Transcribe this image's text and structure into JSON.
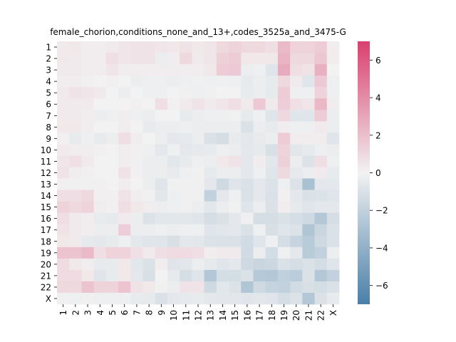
{
  "chart_data": {
    "type": "heatmap",
    "title": "female_chorion,conditions_none_and_13+,codes_3525a_and_3475-G",
    "row_labels": [
      "1",
      "2",
      "3",
      "4",
      "5",
      "6",
      "7",
      "8",
      "9",
      "10",
      "11",
      "12",
      "13",
      "14",
      "15",
      "16",
      "17",
      "18",
      "19",
      "20",
      "21",
      "22",
      "X"
    ],
    "col_labels": [
      "1",
      "2",
      "3",
      "4",
      "5",
      "6",
      "7",
      "8",
      "9",
      "10",
      "11",
      "12",
      "13",
      "14",
      "15",
      "16",
      "17",
      "18",
      "19",
      "20",
      "21",
      "22",
      "X"
    ],
    "colorbar": {
      "min": -7,
      "max": 7,
      "ticks": [
        -6,
        -4,
        -2,
        0,
        2,
        4,
        6
      ]
    },
    "colormap": {
      "low": "#4a7fa8",
      "mid": "#f2f2f2",
      "high": "#d9406e"
    },
    "values": [
      [
        0.3,
        0.4,
        0.2,
        0.2,
        0.3,
        0.5,
        0.6,
        0.6,
        0.5,
        0.4,
        0.6,
        0.4,
        0.5,
        1.0,
        1.2,
        1.0,
        1.0,
        0.8,
        2.2,
        1.2,
        1.2,
        1.5,
        0.2
      ],
      [
        0.4,
        0.3,
        0.2,
        0.2,
        0.8,
        0.5,
        0.6,
        0.6,
        -0.3,
        0.2,
        1.0,
        0.3,
        0.5,
        1.3,
        1.5,
        0.4,
        0.4,
        0.4,
        2.4,
        1.0,
        1.0,
        1.7,
        0.2
      ],
      [
        0.3,
        0.3,
        0.2,
        0.2,
        0.5,
        0.2,
        0.2,
        0.2,
        0.2,
        0.2,
        0.2,
        0.2,
        0.4,
        1.5,
        1.6,
        -0.3,
        -0.2,
        -0.8,
        2.8,
        0.8,
        0.6,
        2.6,
        0.0
      ],
      [
        0.2,
        0.2,
        0.1,
        0.0,
        0.1,
        0.0,
        -0.3,
        -0.2,
        -0.2,
        -0.3,
        -0.2,
        -0.1,
        -0.2,
        -0.1,
        -0.2,
        -0.5,
        -0.3,
        -0.4,
        1.0,
        0.3,
        -0.8,
        1.6,
        -0.2
      ],
      [
        0.3,
        0.6,
        0.5,
        0.3,
        0.0,
        -0.3,
        0.0,
        -0.2,
        -0.2,
        0.0,
        -0.1,
        -0.2,
        -0.1,
        0.0,
        0.0,
        -0.4,
        -0.3,
        -0.5,
        1.5,
        -0.2,
        -0.2,
        1.2,
        -0.2
      ],
      [
        0.3,
        0.3,
        0.3,
        0.0,
        0.0,
        0.0,
        0.1,
        0.0,
        0.8,
        0.1,
        0.3,
        0.6,
        0.3,
        0.5,
        0.8,
        0.3,
        1.6,
        0.3,
        1.4,
        0.7,
        0.5,
        2.3,
        0.2
      ],
      [
        0.3,
        0.3,
        0.2,
        -0.3,
        -0.2,
        0.2,
        -0.2,
        -0.3,
        0.0,
        0.0,
        -0.4,
        -0.3,
        -0.2,
        -0.2,
        -0.1,
        -0.5,
        -0.2,
        -0.8,
        1.0,
        -0.8,
        -0.8,
        1.5,
        -0.3
      ],
      [
        0.4,
        0.4,
        0.2,
        0.0,
        0.0,
        0.2,
        0.0,
        -0.4,
        -0.3,
        -0.3,
        -0.2,
        -0.3,
        -0.3,
        -0.3,
        -0.3,
        -1.0,
        -0.3,
        -0.4,
        0.2,
        -0.2,
        -0.2,
        0.3,
        -0.3
      ],
      [
        0.1,
        -0.4,
        -0.2,
        -0.4,
        -0.3,
        0.8,
        0.2,
        0.0,
        -0.3,
        -0.6,
        -0.5,
        -0.3,
        -1.0,
        -1.2,
        -0.4,
        -0.6,
        -0.4,
        -0.3,
        1.5,
        0.2,
        0.2,
        0.2,
        -0.8
      ],
      [
        0.3,
        0.2,
        0.2,
        0.1,
        0.0,
        0.2,
        0.1,
        -0.2,
        -0.6,
        -0.2,
        -0.6,
        -0.5,
        -0.4,
        -0.2,
        -0.3,
        -0.6,
        -0.5,
        -1.1,
        1.2,
        -0.7,
        -0.5,
        -0.2,
        -0.3
      ],
      [
        0.5,
        0.7,
        0.3,
        0.0,
        0.0,
        0.2,
        -0.1,
        -0.3,
        -0.3,
        -0.7,
        -0.4,
        -0.2,
        -0.3,
        0.4,
        0.6,
        -0.6,
        0.2,
        -0.7,
        1.3,
        -0.3,
        -0.9,
        0.8,
        -0.2
      ],
      [
        0.6,
        0.2,
        0.1,
        0.0,
        0.0,
        0.6,
        0.1,
        -0.3,
        -0.3,
        -0.4,
        -0.2,
        -0.1,
        -0.5,
        -0.3,
        -0.3,
        -0.6,
        -0.2,
        -0.8,
        1.0,
        -0.5,
        -0.3,
        0.3,
        -0.4
      ],
      [
        0.1,
        -0.1,
        -0.1,
        -0.1,
        0.0,
        0.2,
        0.0,
        -0.3,
        -0.8,
        -0.1,
        -0.1,
        -0.1,
        -0.6,
        -1.5,
        -0.8,
        -1.0,
        -0.6,
        -0.9,
        -0.2,
        -0.9,
        -3.0,
        -0.6,
        -0.6
      ],
      [
        0.8,
        0.8,
        1.0,
        0.1,
        0.1,
        0.6,
        0.2,
        -0.1,
        -0.7,
        -0.2,
        -0.1,
        -0.1,
        -2.0,
        -0.6,
        -0.2,
        -1.0,
        -0.6,
        -1.0,
        0.1,
        -0.6,
        -1.0,
        -0.9,
        -0.8
      ],
      [
        1.2,
        1.0,
        1.2,
        0.2,
        0.1,
        0.8,
        0.4,
        0.2,
        -0.3,
        -0.2,
        -0.1,
        -0.3,
        -0.7,
        -0.3,
        -0.1,
        -0.8,
        -0.3,
        -1.0,
        0.2,
        -0.5,
        -0.8,
        -0.6,
        -0.6
      ],
      [
        0.8,
        0.3,
        0.2,
        -0.4,
        -0.5,
        0.3,
        -0.3,
        -0.9,
        -0.7,
        -0.7,
        -0.7,
        -0.8,
        -1.2,
        -1.0,
        -0.6,
        -0.1,
        -1.2,
        -1.2,
        -1.0,
        -1.2,
        -1.5,
        -2.6,
        -1.2
      ],
      [
        0.6,
        0.3,
        0.2,
        -0.3,
        -0.3,
        1.4,
        -0.3,
        -0.3,
        -0.2,
        -0.3,
        -0.2,
        -0.2,
        -0.8,
        -0.7,
        -0.6,
        -1.0,
        -0.2,
        -1.1,
        -0.8,
        -0.9,
        -2.7,
        -1.7,
        -1.0
      ],
      [
        0.4,
        0.3,
        -0.5,
        -0.6,
        -0.4,
        -0.2,
        -0.6,
        -0.8,
        -0.8,
        -1.1,
        -0.6,
        -0.7,
        -0.9,
        -1.0,
        -1.0,
        -1.4,
        -0.8,
        -0.2,
        -1.2,
        -1.8,
        -2.4,
        -1.5,
        -1.0
      ],
      [
        1.8,
        1.8,
        2.2,
        0.8,
        1.2,
        1.2,
        0.7,
        0.3,
        0.8,
        0.9,
        0.9,
        0.8,
        0.2,
        0.3,
        0.3,
        -1.4,
        -0.3,
        -1.3,
        -0.2,
        -0.6,
        -2.4,
        -2.0,
        -0.3
      ],
      [
        0.9,
        0.4,
        0.2,
        -0.4,
        -0.4,
        0.4,
        -0.7,
        -1.0,
        0.2,
        -0.8,
        -0.7,
        -0.3,
        -0.5,
        -0.8,
        -0.6,
        -1.5,
        -1.7,
        -1.6,
        -1.0,
        -1.2,
        -1.0,
        -1.3,
        -0.8
      ],
      [
        0.9,
        0.9,
        0.4,
        -0.8,
        -0.4,
        0.4,
        -0.6,
        -1.1,
        0.0,
        -0.5,
        -1.2,
        -0.8,
        -2.6,
        -1.3,
        -1.3,
        -1.0,
        -2.5,
        -2.6,
        -2.1,
        -2.3,
        -1.0,
        -2.6,
        -2.0
      ],
      [
        1.0,
        1.0,
        1.8,
        1.2,
        1.2,
        1.8,
        0.6,
        0.4,
        -0.1,
        -0.3,
        0.6,
        0.6,
        -1.5,
        -0.7,
        -0.9,
        -2.7,
        -1.5,
        -1.9,
        -2.0,
        -1.4,
        -1.1,
        -1.3,
        -1.0
      ],
      [
        0.1,
        -0.2,
        -0.1,
        -0.2,
        -0.2,
        -0.2,
        -0.4,
        -0.5,
        -1.0,
        -0.6,
        -0.5,
        -0.4,
        -0.6,
        -0.7,
        -0.7,
        -0.8,
        -0.7,
        -0.8,
        -1.2,
        -0.9,
        -2.6,
        -1.0,
        -0.4
      ]
    ]
  }
}
